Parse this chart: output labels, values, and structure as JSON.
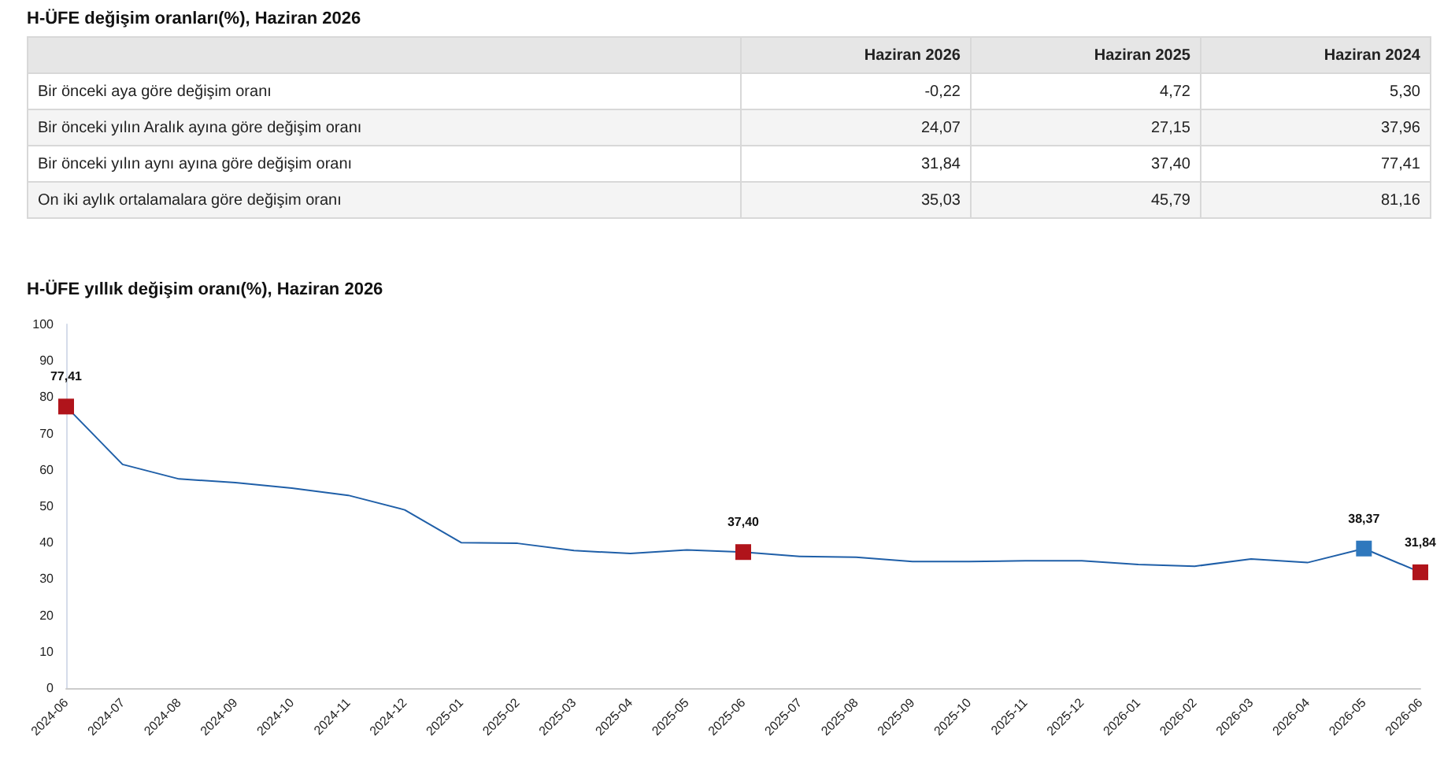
{
  "chart_data": [
    {
      "type": "other",
      "title": "H-ÜFE değişim oranları(%), Haziran 2026",
      "categories": [
        "Haziran 2026",
        "Haziran 2025",
        "Haziran 2024"
      ],
      "y_categories": [
        "Bir önceki aya göre değişim oranı",
        "Bir önceki yılın Aralık ayına göre değişim oranı",
        "Bir önceki yılın aynı ayına göre değişim oranı",
        "On iki aylık ortalamalara göre değişim oranı"
      ],
      "cell_labels": [
        [
          "-0,22",
          "4,72",
          "5,30"
        ],
        [
          "24,07",
          "27,15",
          "37,96"
        ],
        [
          "31,84",
          "37,40",
          "77,41"
        ],
        [
          "35,03",
          "45,79",
          "81,16"
        ]
      ]
    },
    {
      "type": "line",
      "title": "H-ÜFE yıllık değişim oranı(%), Haziran 2026",
      "categories": [
        "2024-06",
        "2024-07",
        "2024-08",
        "2024-09",
        "2024-10",
        "2024-11",
        "2024-12",
        "2025-01",
        "2025-02",
        "2025-03",
        "2025-04",
        "2025-05",
        "2025-06",
        "2025-07",
        "2025-08",
        "2025-09",
        "2025-10",
        "2025-11",
        "2025-12",
        "2026-01",
        "2026-02",
        "2026-03",
        "2026-04",
        "2026-05",
        "2026-06"
      ],
      "series": [
        {
          "color": "#1f5fa8",
          "values": [
            77.41,
            61.5,
            57.5,
            56.5,
            55,
            53,
            49,
            40,
            39.8,
            37.8,
            37,
            38,
            37.4,
            36.2,
            36,
            34.8,
            34.8,
            35,
            35,
            34,
            33.5,
            35.5,
            34.5,
            38.37,
            31.84
          ],
          "colors": [
            "#b0141b",
            null,
            null,
            null,
            null,
            null,
            null,
            null,
            null,
            null,
            null,
            null,
            "#b0141b",
            null,
            null,
            null,
            null,
            null,
            null,
            null,
            null,
            null,
            null,
            "#2f78bd",
            "#b0141b"
          ],
          "value_labels": [
            "77,41",
            null,
            null,
            null,
            null,
            null,
            null,
            null,
            null,
            null,
            null,
            null,
            "37,40",
            null,
            null,
            null,
            null,
            null,
            null,
            null,
            null,
            null,
            null,
            "38,37",
            "31,84"
          ]
        }
      ],
      "ylim": [
        0,
        100
      ],
      "yticks": [
        0,
        10,
        20,
        30,
        40,
        50,
        60,
        70,
        80,
        90,
        100
      ],
      "grid": false
    }
  ]
}
